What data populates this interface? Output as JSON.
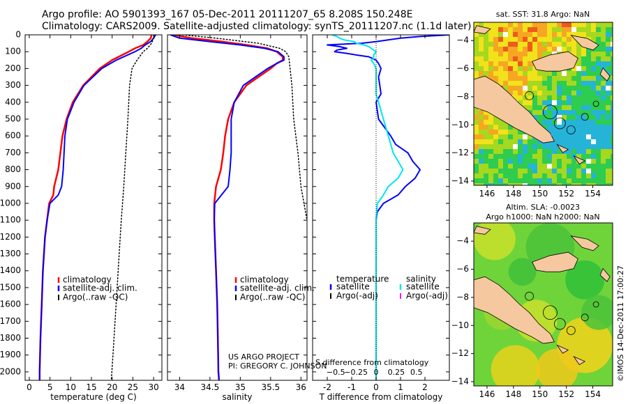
{
  "header": {
    "line1": "Argo profile: AO 5901393_167 05-Dec-2011 20111207_65 8.208S 150.248E",
    "line2": "Climatology: CARS2009. Satellite-adjusted climatology: synTS_20111207.nc (1.1d later)"
  },
  "colors": {
    "climatology": "#ff0000",
    "satellite": "#0000ff",
    "argo": "#000000",
    "salinity_satellite": "#00e5ee",
    "salinity_argo": "#ff00ff",
    "land": "#f5c8a0"
  },
  "chart_data": [
    {
      "type": "line",
      "id": "temperature",
      "xlabel": "temperature (deg C)",
      "xlim": [
        -1,
        32
      ],
      "ylim": [
        2050,
        0
      ],
      "xticks": [
        0,
        5,
        10,
        15,
        20,
        25,
        30
      ],
      "yticks": [
        0,
        100,
        200,
        300,
        400,
        500,
        600,
        700,
        800,
        900,
        1000,
        1100,
        1200,
        1300,
        1400,
        1500,
        1600,
        1700,
        1800,
        1900,
        2000
      ],
      "series": [
        {
          "name": "climatology",
          "color": "climatology",
          "width": 2.5,
          "depth": [
            0,
            20,
            40,
            60,
            80,
            100,
            150,
            200,
            300,
            400,
            500,
            600,
            700,
            800,
            900,
            950,
            1000,
            1100,
            1200,
            1400,
            1600,
            1800,
            2000,
            2050
          ],
          "values": [
            29.5,
            29.3,
            28.5,
            27.5,
            25.5,
            24,
            20,
            17,
            13,
            10.5,
            9,
            8,
            7.5,
            7,
            6,
            5.8,
            4.8,
            4.3,
            3.8,
            3.3,
            3,
            2.7,
            2.5,
            2.5
          ]
        },
        {
          "name": "satellite-adj. clim.",
          "color": "satellite",
          "width": 2,
          "depth": [
            0,
            20,
            40,
            60,
            80,
            100,
            150,
            200,
            300,
            400,
            500,
            600,
            700,
            800,
            900,
            950,
            1000,
            1100,
            1200,
            1400,
            1600,
            1800,
            2000,
            2050
          ],
          "values": [
            30.5,
            30,
            29.3,
            28,
            27,
            25.5,
            21,
            17.5,
            13.2,
            10.8,
            9.2,
            8.6,
            8.4,
            8.2,
            7.8,
            7,
            5,
            4.3,
            3.8,
            3.3,
            3,
            2.7,
            2.5,
            2.5
          ]
        },
        {
          "name": "Argo(..raw -QC)",
          "color": "argo",
          "width": 1.5,
          "dotted": true,
          "depth": [
            0,
            20,
            50,
            80,
            100,
            150,
            200,
            300,
            500,
            700,
            900,
            1100,
            1300,
            1500,
            1700,
            1900,
            2050
          ],
          "values": [
            30.2,
            30,
            29.5,
            28.5,
            27.5,
            26,
            24.8,
            24.2,
            23.8,
            23.3,
            22.8,
            22.2,
            21.7,
            21.2,
            20.7,
            20.2,
            19.8
          ]
        }
      ],
      "legend": [
        "climatology",
        "satellite-adj. clim.",
        "Argo(..raw -QC)"
      ]
    },
    {
      "type": "line",
      "id": "salinity",
      "xlabel": "salinity",
      "xlim": [
        33.8,
        36.1
      ],
      "ylim": [
        2050,
        0
      ],
      "xticks": [
        34,
        34.5,
        35,
        35.5,
        36
      ],
      "series": [
        {
          "name": "climatology",
          "color": "climatology",
          "width": 2.5,
          "depth": [
            0,
            20,
            40,
            60,
            80,
            100,
            130,
            150,
            170,
            200,
            250,
            300,
            400,
            500,
            600,
            700,
            800,
            900,
            1000,
            1100,
            1200,
            1400,
            1600,
            1800,
            2000,
            2050
          ],
          "values": [
            33.9,
            34.2,
            34.7,
            35.1,
            35.45,
            35.6,
            35.7,
            35.7,
            35.6,
            35.5,
            35.3,
            35.1,
            34.9,
            34.8,
            34.75,
            34.72,
            34.68,
            34.6,
            34.57,
            34.57,
            34.58,
            34.6,
            34.62,
            34.63,
            34.64,
            34.65
          ]
        },
        {
          "name": "satellite-adj. clim.",
          "color": "satellite",
          "width": 2,
          "depth": [
            0,
            20,
            40,
            60,
            80,
            100,
            130,
            150,
            170,
            200,
            250,
            300,
            400,
            500,
            600,
            700,
            800,
            900,
            1000,
            1100,
            1200,
            1400,
            1600,
            1800,
            2000,
            2050
          ],
          "values": [
            33.85,
            34.0,
            34.5,
            35.0,
            35.4,
            35.62,
            35.72,
            35.72,
            35.6,
            35.45,
            35.25,
            35.05,
            34.9,
            34.85,
            34.85,
            34.85,
            34.83,
            34.8,
            34.58,
            34.57,
            34.58,
            34.6,
            34.62,
            34.63,
            34.64,
            34.65
          ]
        },
        {
          "name": "Argo(..raw -QC)",
          "color": "argo",
          "width": 1.5,
          "dotted": true,
          "depth": [
            0,
            20,
            50,
            80,
            100,
            130,
            200,
            300,
            500,
            700,
            900,
            1100
          ],
          "values": [
            34.05,
            34.6,
            35.3,
            35.65,
            35.75,
            35.8,
            35.82,
            35.85,
            35.88,
            35.95,
            36.0,
            36.1
          ]
        }
      ],
      "legend": [
        "climatology",
        "satellite-adj. clim.",
        "Argo(..raw -QC)"
      ],
      "annotation_line1": "US ARGO PROJECT",
      "annotation_line2": "PI: GREGORY C. JOHNSON"
    },
    {
      "type": "line",
      "id": "difference",
      "xlabel": "T difference from climatology",
      "xlabel_top": "S difference from climatology",
      "xlim": [
        -2.6,
        3.0
      ],
      "ylim": [
        2050,
        0
      ],
      "xticks": [
        -2,
        -1,
        0,
        1,
        2
      ],
      "xticks_top": [
        -0.5,
        -0.25,
        0,
        0.25,
        0.5
      ],
      "xticks_top_labels": [
        "−0.5",
        "−0.25",
        "0",
        "0.25",
        "0.5"
      ],
      "series": [
        {
          "name": "temperature satellite",
          "color": "satellite",
          "width": 2,
          "depth": [
            0,
            10,
            20,
            30,
            40,
            50,
            60,
            70,
            80,
            90,
            100,
            110,
            120,
            130,
            150,
            170,
            200,
            250,
            300,
            350,
            400,
            500,
            600,
            650,
            700,
            750,
            800,
            850,
            900,
            950,
            1000,
            1050,
            1100,
            1200,
            1300,
            1400,
            1600,
            1800,
            2000,
            2050
          ],
          "values": [
            3.0,
            1.8,
            1.0,
            0.5,
            0.0,
            -0.6,
            -2.0,
            -1.5,
            -1.2,
            -1.6,
            -1.7,
            -1.2,
            -0.8,
            -0.3,
            0.0,
            0.1,
            0.2,
            0.1,
            0.15,
            0.2,
            0.0,
            0.1,
            0.6,
            0.8,
            1.3,
            1.5,
            1.8,
            1.6,
            1.2,
            0.9,
            0.3,
            0.05,
            0.0,
            0.0,
            0.0,
            0.0,
            0.0,
            0.0,
            0.0,
            0.0
          ]
        },
        {
          "name": "salinity satellite",
          "color": "salinity_satellite",
          "width": 2,
          "depth": [
            0,
            10,
            20,
            30,
            40,
            50,
            60,
            70,
            80,
            100,
            120,
            140,
            150,
            170,
            200,
            250,
            300,
            350,
            400,
            500,
            600,
            700,
            750,
            800,
            850,
            900,
            950,
            1000,
            1100,
            1200,
            1400,
            1600,
            1800,
            2000,
            2050
          ],
          "values": [
            -1.8,
            -1.6,
            -1.5,
            -1.3,
            -0.9,
            -0.8,
            -0.5,
            -0.3,
            -0.2,
            0.0,
            -0.1,
            -0.1,
            -0.2,
            -0.1,
            0.0,
            0.0,
            0.0,
            0.0,
            0.1,
            0.3,
            0.5,
            0.7,
            0.9,
            1.1,
            0.9,
            0.5,
            0.3,
            0.05,
            0.0,
            0.0,
            0.0,
            0.0,
            0.0,
            0.0,
            0.0
          ]
        }
      ],
      "legend_headers": [
        "temperature",
        "salinity"
      ],
      "legend": [
        "satellite",
        "Argo(-adj)",
        "satellite",
        "Argo(-adj)"
      ]
    }
  ],
  "maps": {
    "sst": {
      "title": "sat. SST: 31.8  Argo: NaN",
      "xticks": [
        146,
        148,
        150,
        152,
        154
      ],
      "yticks": [
        -4,
        -6,
        -8,
        -10,
        -12,
        -14
      ],
      "xlim": [
        145,
        155.5
      ],
      "ylim": [
        -14.3,
        -2.7
      ]
    },
    "sla": {
      "title1": "Altim. SLA: -0.0023",
      "title2": "Argo h1000: NaN h2000: NaN",
      "xticks": [
        146,
        148,
        150,
        152,
        154
      ],
      "yticks": [
        -4,
        -6,
        -8,
        -10,
        -12,
        -14
      ],
      "xlim": [
        145,
        155.5
      ],
      "ylim": [
        -14.3,
        -2.7
      ]
    }
  },
  "footer": {
    "stamp": "©IMOS 14-Dec-2011 17:00:27"
  }
}
